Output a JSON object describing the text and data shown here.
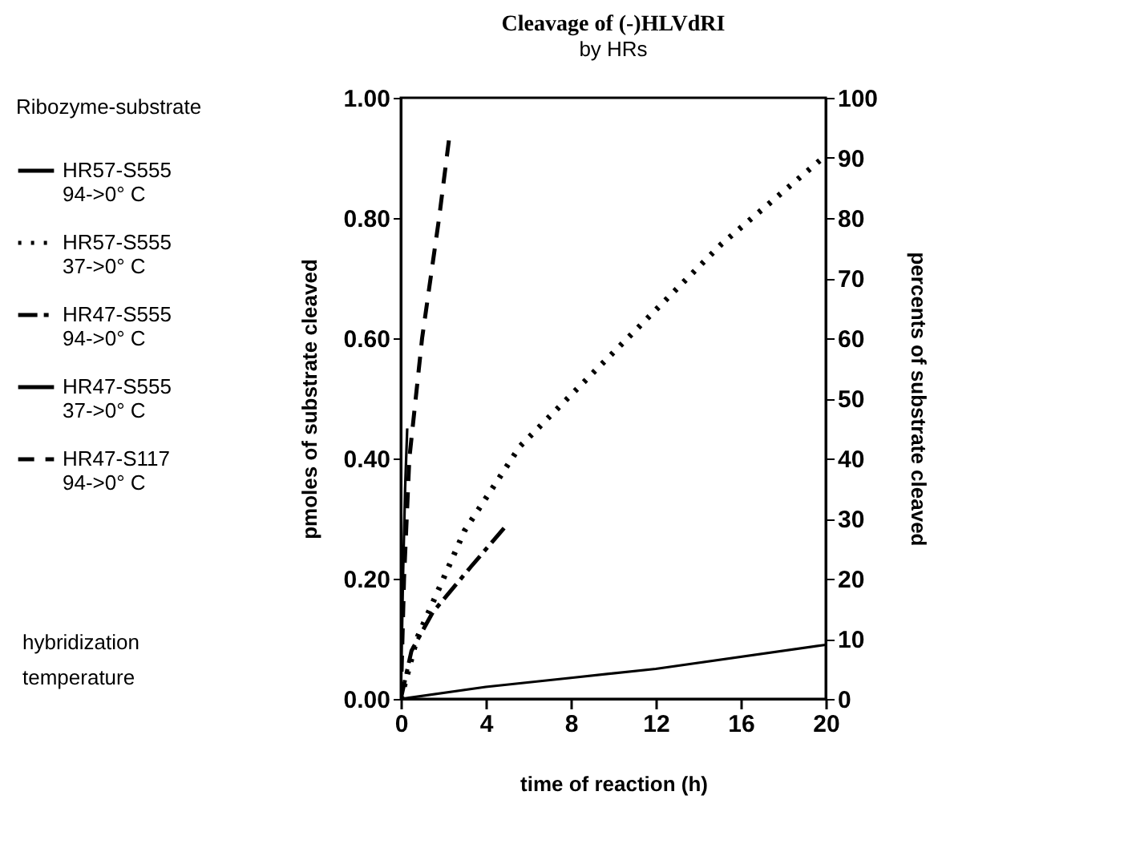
{
  "chart_data": {
    "type": "line",
    "title": "Cleavage of (-)HLVdRI",
    "subtitle": "by HRs",
    "xlabel": "time of reaction (h)",
    "ylabel": "pmoles of substrate cleaved",
    "y2label": "percents of substrate cleaved",
    "legend_title": "Ribozyme-substrate",
    "annotations": [
      "hybridization temperature"
    ],
    "legend": "left",
    "grid": false,
    "xlim": [
      0,
      20
    ],
    "xticks": [
      0,
      4,
      8,
      12,
      16,
      20
    ],
    "ylim": [
      0,
      1
    ],
    "yticks": [
      {
        "value": 0,
        "label": "0.00"
      },
      {
        "value": 0.2,
        "label": "0.20"
      },
      {
        "value": 0.4,
        "label": "0.40"
      },
      {
        "value": 0.6,
        "label": "0.60"
      },
      {
        "value": 0.8,
        "label": "0.80"
      },
      {
        "value": 1,
        "label": "1.00"
      }
    ],
    "y2lim": [
      0,
      100
    ],
    "y2ticks": [
      0,
      10,
      20,
      30,
      40,
      50,
      60,
      70,
      80,
      90,
      100
    ],
    "series": [
      {
        "name": "HR57-S555\n94->0° C",
        "color": "#000000",
        "line_style": "solid",
        "x": [
          0,
          0.1,
          0.2,
          0.3
        ],
        "values": [
          0,
          0.2,
          0.35,
          0.45
        ]
      },
      {
        "name": "HR57-S555\n37->0° C",
        "color": "#000000",
        "line_style": "dotted",
        "x": [
          0,
          0.75,
          3,
          5.6,
          9.4,
          15.1,
          20
        ],
        "values": [
          0,
          0.1,
          0.28,
          0.42,
          0.555,
          0.757,
          0.904
        ]
      },
      {
        "name": "HR47-S555\n94->0° C",
        "color": "#000000",
        "line_style": "dashdot",
        "x": [
          0,
          0.5,
          1.5,
          3.3,
          5
        ],
        "values": [
          0,
          0.08,
          0.144,
          0.22,
          0.29
        ]
      },
      {
        "name": "HR47-S555\n37->0° C",
        "color": "#000000",
        "line_style": "solid",
        "x": [
          0,
          4,
          8,
          12,
          20
        ],
        "values": [
          0,
          0.02,
          0.035,
          0.05,
          0.09
        ]
      },
      {
        "name": "HR47-S117\n94->0° C",
        "color": "#000000",
        "line_style": "dashed",
        "x": [
          0,
          0.15,
          0.4,
          1,
          1.8,
          2.3
        ],
        "values": [
          0,
          0.2,
          0.4,
          0.6,
          0.8,
          0.94
        ]
      }
    ]
  }
}
